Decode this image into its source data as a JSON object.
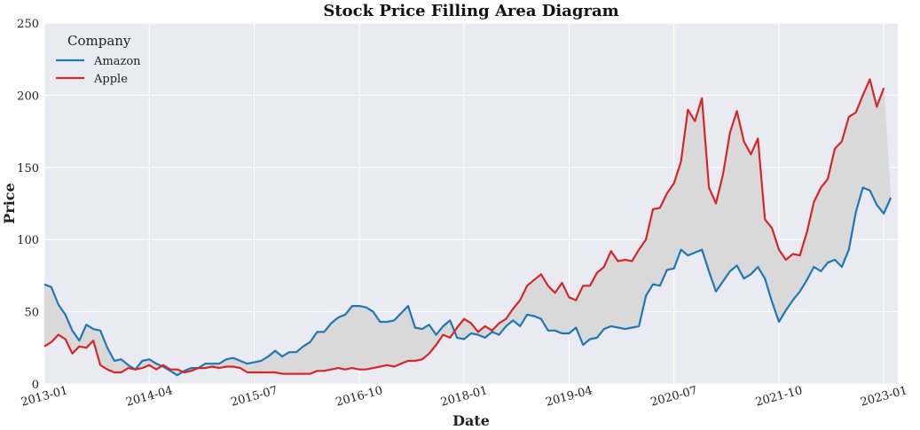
{
  "chart_data": {
    "type": "area",
    "title": "Stock Price Filling Area Diagram",
    "xlabel": "Date",
    "ylabel": "Price",
    "ylim": [
      0,
      250
    ],
    "yticks": [
      0,
      50,
      100,
      150,
      200,
      250
    ],
    "xlim": [
      "2013-01",
      "2023-03"
    ],
    "xticks": [
      "2013-01",
      "2014-04",
      "2015-07",
      "2016-10",
      "2018-01",
      "2019-04",
      "2020-07",
      "2021-10",
      "2023-01"
    ],
    "grid": true,
    "legend": {
      "title": "Company",
      "placement": "top-left"
    },
    "fill_between": {
      "color": "#d9d9d9",
      "between": [
        "Amazon",
        "Apple"
      ]
    },
    "series": [
      {
        "name": "Amazon",
        "color": "#1f77b4",
        "points": [
          [
            "2013-01",
            69
          ],
          [
            "2013-02",
            67
          ],
          [
            "2013-03",
            55
          ],
          [
            "2013-04",
            48
          ],
          [
            "2013-05",
            37
          ],
          [
            "2013-06",
            30
          ],
          [
            "2013-07",
            41
          ],
          [
            "2013-08",
            38
          ],
          [
            "2013-09",
            37
          ],
          [
            "2013-10",
            25
          ],
          [
            "2013-11",
            16
          ],
          [
            "2013-12",
            17
          ],
          [
            "2014-01",
            13
          ],
          [
            "2014-02",
            10
          ],
          [
            "2014-03",
            16
          ],
          [
            "2014-04",
            17
          ],
          [
            "2014-05",
            14
          ],
          [
            "2014-06",
            12
          ],
          [
            "2014-07",
            9
          ],
          [
            "2014-08",
            6
          ],
          [
            "2014-09",
            9
          ],
          [
            "2014-10",
            11
          ],
          [
            "2014-11",
            11
          ],
          [
            "2014-12",
            14
          ],
          [
            "2015-01",
            14
          ],
          [
            "2015-02",
            14
          ],
          [
            "2015-03",
            17
          ],
          [
            "2015-04",
            18
          ],
          [
            "2015-05",
            16
          ],
          [
            "2015-06",
            14
          ],
          [
            "2015-07",
            15
          ],
          [
            "2015-08",
            16
          ],
          [
            "2015-09",
            19
          ],
          [
            "2015-10",
            23
          ],
          [
            "2015-11",
            19
          ],
          [
            "2015-12",
            22
          ],
          [
            "2016-01",
            22
          ],
          [
            "2016-02",
            26
          ],
          [
            "2016-03",
            29
          ],
          [
            "2016-04",
            36
          ],
          [
            "2016-05",
            36
          ],
          [
            "2016-06",
            42
          ],
          [
            "2016-07",
            46
          ],
          [
            "2016-08",
            48
          ],
          [
            "2016-09",
            54
          ],
          [
            "2016-10",
            54
          ],
          [
            "2016-11",
            53
          ],
          [
            "2016-12",
            50
          ],
          [
            "2017-01",
            43
          ],
          [
            "2017-02",
            43
          ],
          [
            "2017-03",
            44
          ],
          [
            "2017-04",
            49
          ],
          [
            "2017-05",
            54
          ],
          [
            "2017-06",
            39
          ],
          [
            "2017-07",
            38
          ],
          [
            "2017-08",
            41
          ],
          [
            "2017-09",
            34
          ],
          [
            "2017-10",
            40
          ],
          [
            "2017-11",
            44
          ],
          [
            "2017-12",
            32
          ],
          [
            "2018-01",
            31
          ],
          [
            "2018-02",
            35
          ],
          [
            "2018-03",
            34
          ],
          [
            "2018-04",
            32
          ],
          [
            "2018-05",
            36
          ],
          [
            "2018-06",
            34
          ],
          [
            "2018-07",
            40
          ],
          [
            "2018-08",
            44
          ],
          [
            "2018-09",
            40
          ],
          [
            "2018-10",
            48
          ],
          [
            "2018-11",
            47
          ],
          [
            "2018-12",
            45
          ],
          [
            "2019-01",
            37
          ],
          [
            "2019-02",
            37
          ],
          [
            "2019-03",
            35
          ],
          [
            "2019-04",
            35
          ],
          [
            "2019-05",
            39
          ],
          [
            "2019-06",
            27
          ],
          [
            "2019-07",
            31
          ],
          [
            "2019-08",
            32
          ],
          [
            "2019-09",
            38
          ],
          [
            "2019-10",
            40
          ],
          [
            "2019-11",
            39
          ],
          [
            "2019-12",
            38
          ],
          [
            "2020-01",
            39
          ],
          [
            "2020-02",
            40
          ],
          [
            "2020-03",
            61
          ],
          [
            "2020-04",
            69
          ],
          [
            "2020-05",
            68
          ],
          [
            "2020-06",
            79
          ],
          [
            "2020-07",
            80
          ],
          [
            "2020-08",
            93
          ],
          [
            "2020-09",
            89
          ],
          [
            "2020-10",
            91
          ],
          [
            "2020-11",
            93
          ],
          [
            "2020-12",
            78
          ],
          [
            "2021-01",
            64
          ],
          [
            "2021-02",
            71
          ],
          [
            "2021-03",
            78
          ],
          [
            "2021-04",
            82
          ],
          [
            "2021-05",
            73
          ],
          [
            "2021-06",
            76
          ],
          [
            "2021-07",
            81
          ],
          [
            "2021-08",
            73
          ],
          [
            "2021-09",
            57
          ],
          [
            "2021-10",
            43
          ],
          [
            "2021-11",
            51
          ],
          [
            "2021-12",
            58
          ],
          [
            "2022-01",
            64
          ],
          [
            "2022-02",
            72
          ],
          [
            "2022-03",
            81
          ],
          [
            "2022-04",
            78
          ],
          [
            "2022-05",
            84
          ],
          [
            "2022-06",
            86
          ],
          [
            "2022-07",
            81
          ],
          [
            "2022-08",
            93
          ],
          [
            "2022-09",
            119
          ],
          [
            "2022-10",
            136
          ],
          [
            "2022-11",
            134
          ],
          [
            "2022-12",
            124
          ],
          [
            "2023-01",
            118
          ],
          [
            "2023-02",
            129
          ]
        ]
      },
      {
        "name": "Apple",
        "color": "#d62728",
        "points": [
          [
            "2013-01",
            26
          ],
          [
            "2013-02",
            29
          ],
          [
            "2013-03",
            34
          ],
          [
            "2013-04",
            31
          ],
          [
            "2013-05",
            21
          ],
          [
            "2013-06",
            26
          ],
          [
            "2013-07",
            25
          ],
          [
            "2013-08",
            30
          ],
          [
            "2013-09",
            13
          ],
          [
            "2013-10",
            10
          ],
          [
            "2013-11",
            8
          ],
          [
            "2013-12",
            8
          ],
          [
            "2014-01",
            11
          ],
          [
            "2014-02",
            10
          ],
          [
            "2014-03",
            11
          ],
          [
            "2014-04",
            13
          ],
          [
            "2014-05",
            10
          ],
          [
            "2014-06",
            13
          ],
          [
            "2014-07",
            10
          ],
          [
            "2014-08",
            10
          ],
          [
            "2014-09",
            8
          ],
          [
            "2014-10",
            9
          ],
          [
            "2014-11",
            11
          ],
          [
            "2014-12",
            11
          ],
          [
            "2015-01",
            12
          ],
          [
            "2015-02",
            11
          ],
          [
            "2015-03",
            12
          ],
          [
            "2015-04",
            12
          ],
          [
            "2015-05",
            11
          ],
          [
            "2015-06",
            8
          ],
          [
            "2015-07",
            8
          ],
          [
            "2015-08",
            8
          ],
          [
            "2015-09",
            8
          ],
          [
            "2015-10",
            8
          ],
          [
            "2015-11",
            7
          ],
          [
            "2015-12",
            7
          ],
          [
            "2016-01",
            7
          ],
          [
            "2016-02",
            7
          ],
          [
            "2016-03",
            7
          ],
          [
            "2016-04",
            9
          ],
          [
            "2016-05",
            9
          ],
          [
            "2016-06",
            10
          ],
          [
            "2016-07",
            11
          ],
          [
            "2016-08",
            10
          ],
          [
            "2016-09",
            11
          ],
          [
            "2016-10",
            10
          ],
          [
            "2016-11",
            10
          ],
          [
            "2016-12",
            11
          ],
          [
            "2017-01",
            12
          ],
          [
            "2017-02",
            13
          ],
          [
            "2017-03",
            12
          ],
          [
            "2017-04",
            14
          ],
          [
            "2017-05",
            16
          ],
          [
            "2017-06",
            16
          ],
          [
            "2017-07",
            17
          ],
          [
            "2017-08",
            21
          ],
          [
            "2017-09",
            27
          ],
          [
            "2017-10",
            34
          ],
          [
            "2017-11",
            32
          ],
          [
            "2017-12",
            39
          ],
          [
            "2018-01",
            45
          ],
          [
            "2018-02",
            42
          ],
          [
            "2018-03",
            36
          ],
          [
            "2018-04",
            40
          ],
          [
            "2018-05",
            37
          ],
          [
            "2018-06",
            42
          ],
          [
            "2018-07",
            45
          ],
          [
            "2018-08",
            52
          ],
          [
            "2018-09",
            58
          ],
          [
            "2018-10",
            68
          ],
          [
            "2018-11",
            72
          ],
          [
            "2018-12",
            76
          ],
          [
            "2019-01",
            68
          ],
          [
            "2019-02",
            63
          ],
          [
            "2019-03",
            70
          ],
          [
            "2019-04",
            60
          ],
          [
            "2019-05",
            58
          ],
          [
            "2019-06",
            68
          ],
          [
            "2019-07",
            68
          ],
          [
            "2019-08",
            77
          ],
          [
            "2019-09",
            81
          ],
          [
            "2019-10",
            92
          ],
          [
            "2019-11",
            85
          ],
          [
            "2019-12",
            86
          ],
          [
            "2020-01",
            85
          ],
          [
            "2020-02",
            93
          ],
          [
            "2020-03",
            100
          ],
          [
            "2020-04",
            121
          ],
          [
            "2020-05",
            122
          ],
          [
            "2020-06",
            132
          ],
          [
            "2020-07",
            139
          ],
          [
            "2020-08",
            154
          ],
          [
            "2020-09",
            190
          ],
          [
            "2020-10",
            182
          ],
          [
            "2020-11",
            198
          ],
          [
            "2020-12",
            136
          ],
          [
            "2021-01",
            125
          ],
          [
            "2021-02",
            145
          ],
          [
            "2021-03",
            174
          ],
          [
            "2021-04",
            189
          ],
          [
            "2021-05",
            168
          ],
          [
            "2021-06",
            159
          ],
          [
            "2021-07",
            170
          ],
          [
            "2021-08",
            114
          ],
          [
            "2021-09",
            108
          ],
          [
            "2021-10",
            93
          ],
          [
            "2021-11",
            86
          ],
          [
            "2021-12",
            90
          ],
          [
            "2022-01",
            89
          ],
          [
            "2022-02",
            105
          ],
          [
            "2022-03",
            126
          ],
          [
            "2022-04",
            136
          ],
          [
            "2022-05",
            142
          ],
          [
            "2022-06",
            163
          ],
          [
            "2022-07",
            168
          ],
          [
            "2022-08",
            185
          ],
          [
            "2022-09",
            188
          ],
          [
            "2022-10",
            200
          ],
          [
            "2022-11",
            211
          ],
          [
            "2022-12",
            192
          ],
          [
            "2023-01",
            205
          ]
        ]
      }
    ]
  }
}
